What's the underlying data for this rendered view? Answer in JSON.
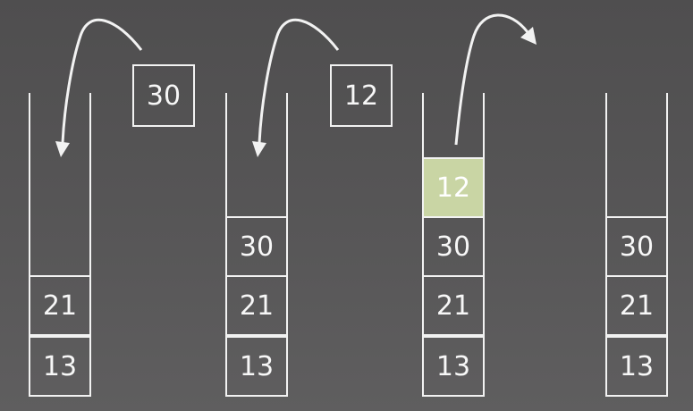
{
  "colors": {
    "background": "#555455",
    "stroke": "#f2f2f2",
    "highlight": "#c9d5a4"
  },
  "stacks": [
    {
      "cells": [
        "13",
        "21"
      ],
      "incoming": "30"
    },
    {
      "cells": [
        "13",
        "21",
        "30"
      ],
      "incoming": "12"
    },
    {
      "cells": [
        "13",
        "21",
        "30",
        "12"
      ],
      "highlight_top": true
    },
    {
      "cells": [
        "13",
        "21",
        "30"
      ]
    }
  ]
}
